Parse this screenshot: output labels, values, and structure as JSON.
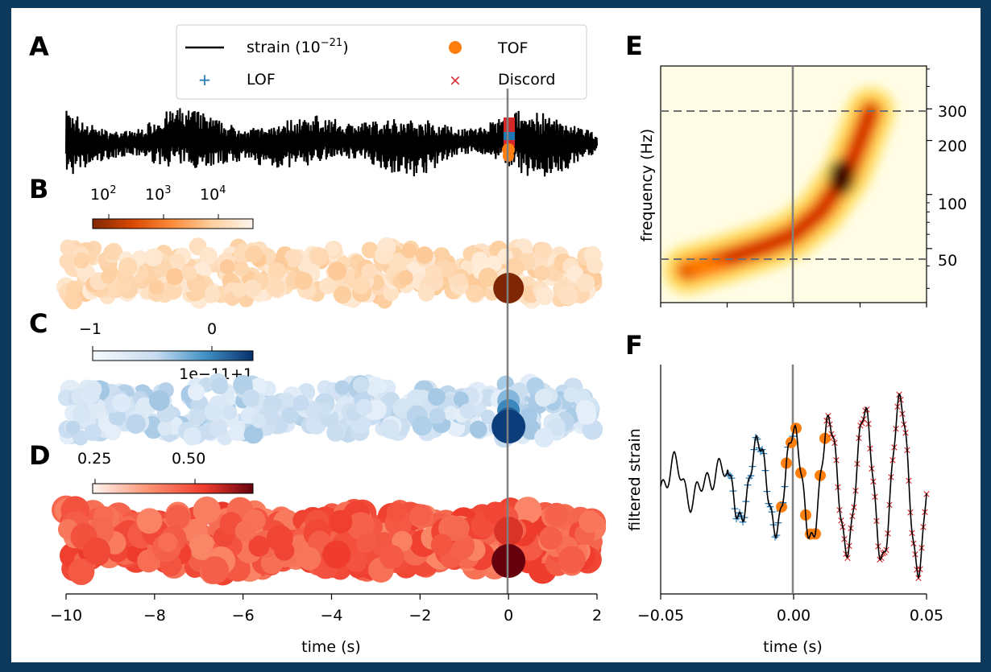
{
  "panels": {
    "A": "A",
    "B": "B",
    "C": "C",
    "D": "D",
    "E": "E",
    "F": "F"
  },
  "colors": {
    "strain": "#000000",
    "lof": "#1f77b4",
    "tof": "#ff7f0e",
    "discord": "#d62728",
    "vline": "#808080",
    "dashed": "#707070"
  },
  "legend": {
    "strain_prefix": "strain (10",
    "strain_exp": "−21",
    "strain_suffix": ")",
    "lof": "LOF",
    "tof": "TOF",
    "discord": "Discord"
  },
  "colorbars": {
    "B": {
      "cmap": "Oranges_r",
      "tick_base": [
        "10",
        "10",
        "10"
      ],
      "tick_exp": [
        "2",
        "3",
        "4"
      ]
    },
    "C": {
      "cmap": "Blues",
      "ticks": [
        "−1",
        "0"
      ],
      "offset": "1e−11+1"
    },
    "D": {
      "cmap": "Reds",
      "ticks": [
        "0.25",
        "0.50"
      ]
    }
  },
  "left_xaxis": {
    "label": "time (s)",
    "ticks": [
      "−10",
      "−8",
      "−6",
      "−4",
      "−2",
      "0",
      "2"
    ]
  },
  "right_E": {
    "ylabel": "frequency (Hz)",
    "yticks": [
      "300",
      "200",
      "100",
      "50"
    ]
  },
  "right_F": {
    "ylabel": "filtered strain",
    "xlabel": "time (s)",
    "xticks": [
      "−0.05",
      "0.00",
      "0.05"
    ]
  },
  "chart_data": [
    {
      "type": "line",
      "panel": "A",
      "series": [
        {
          "name": "strain (10^−21)",
          "description_only": false
        }
      ],
      "x_range": [
        -10,
        2
      ],
      "event_time": 0,
      "markers": [
        {
          "name": "LOF",
          "x": 0
        },
        {
          "name": "TOF",
          "x": 0
        },
        {
          "name": "Discord",
          "x": 0
        }
      ]
    },
    {
      "type": "scatter",
      "panel": "B",
      "x_range": [
        -10,
        2
      ],
      "colorbar_range_log10": [
        1.5,
        4.8
      ],
      "highlight": {
        "x": 0,
        "log10_value": 1.5
      }
    },
    {
      "type": "scatter",
      "panel": "C",
      "x_range": [
        -10,
        2
      ],
      "highlight": {
        "x": 0
      }
    },
    {
      "type": "scatter",
      "panel": "D",
      "x_range": [
        -10,
        2
      ],
      "colorbar_range": [
        0.15,
        0.7
      ],
      "highlight": {
        "x": 0,
        "value": 0.7
      }
    },
    {
      "type": "heatmap",
      "panel": "E",
      "x_range": [
        -0.05,
        0.05
      ],
      "y_scale": "log",
      "y_range": [
        25,
        520
      ],
      "dashed_hlines": [
        300,
        50
      ],
      "chirp": [
        {
          "t": -0.04,
          "f": 38
        },
        {
          "t": -0.025,
          "f": 44
        },
        {
          "t": -0.01,
          "f": 52
        },
        {
          "t": 0.0,
          "f": 60
        },
        {
          "t": 0.01,
          "f": 80
        },
        {
          "t": 0.02,
          "f": 130
        },
        {
          "t": 0.025,
          "f": 200
        },
        {
          "t": 0.029,
          "f": 290
        }
      ]
    },
    {
      "type": "line",
      "panel": "F",
      "x_range": [
        -0.05,
        0.05
      ],
      "xticks": [
        -0.05,
        0.0,
        0.05
      ],
      "segments": [
        {
          "name": "LOF",
          "t_start": -0.025,
          "t_end": 0.0
        },
        {
          "name": "TOF",
          "t_start": -0.006,
          "t_end": 0.012
        },
        {
          "name": "Discord",
          "t_start": 0.012,
          "t_end": 0.05
        }
      ]
    }
  ]
}
